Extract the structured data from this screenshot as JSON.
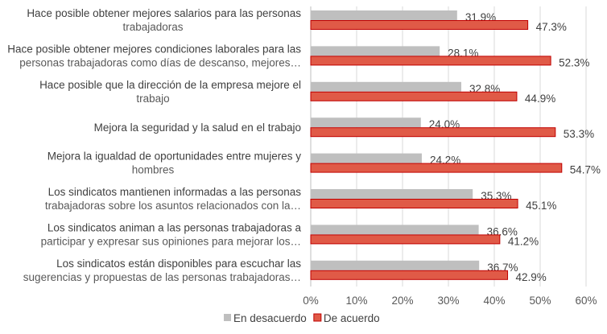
{
  "chart_data": {
    "type": "bar",
    "orientation": "horizontal",
    "categories": [
      [
        "Hace posible obtener mejores salarios para las personas",
        "trabajadoras"
      ],
      [
        "Hace posible obtener mejores condiciones laborales para las",
        "personas trabajadoras como días de descanso, mejores…"
      ],
      [
        "Hace posible que la dirección de la empresa mejore el",
        "trabajo"
      ],
      [
        "Mejora la seguridad y la salud en el trabajo"
      ],
      [
        "Mejora la igualdad de oportunidades entre mujeres y",
        "hombres"
      ],
      [
        "Los sindicatos mantienen informadas a las personas",
        "trabajadoras sobre los asuntos relacionados con la…"
      ],
      [
        "Los sindicatos animan a las personas trabajadoras a",
        "participar y expresar sus opiniones para mejorar los…"
      ],
      [
        "Los sindicatos están disponibles para escuchar las",
        "sugerencias y propuestas de las personas trabajadoras…"
      ]
    ],
    "series": [
      {
        "name": "En desacuerdo",
        "color": "#bfbfbf",
        "values": [
          31.9,
          28.1,
          32.8,
          24.0,
          24.2,
          35.3,
          36.6,
          36.7
        ],
        "labels": [
          "31.9%",
          "28.1%",
          "32.8%",
          "24.0%",
          "24.2%",
          "35.3%",
          "36.6%",
          "36.7%"
        ]
      },
      {
        "name": "De acuerdo",
        "color": "#e05a47",
        "border": "#c00000",
        "values": [
          47.3,
          52.3,
          44.9,
          53.3,
          54.7,
          45.1,
          41.2,
          42.9
        ],
        "labels": [
          "47.3%",
          "52.3%",
          "44.9%",
          "53.3%",
          "54.7%",
          "45.1%",
          "41.2%",
          "42.9%"
        ]
      }
    ],
    "xlim": [
      0,
      60
    ],
    "xticks": [
      "0%",
      "10%",
      "20%",
      "30%",
      "40%",
      "50%",
      "60%"
    ],
    "grid": true,
    "legend": "bottom"
  }
}
